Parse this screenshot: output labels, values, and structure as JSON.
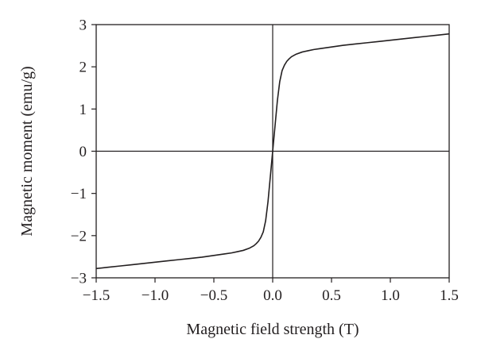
{
  "chart_data": {
    "type": "line",
    "xlabel": "Magnetic field strength (T)",
    "ylabel": "Magnetic moment (emu/g)",
    "xlim": [
      -1.5,
      1.5
    ],
    "ylim": [
      -3,
      3
    ],
    "x_ticks": [
      -1.5,
      -1.0,
      -0.5,
      0.0,
      0.5,
      1.0,
      1.5
    ],
    "x_tick_labels": [
      "−1.5",
      "−1.0",
      "−0.5",
      "0.0",
      "0.5",
      "1.0",
      "1.5"
    ],
    "y_ticks": [
      -3,
      -2,
      -1,
      0,
      1,
      2,
      3
    ],
    "y_tick_labels": [
      "−3",
      "−2",
      "−1",
      "0",
      "1",
      "2",
      "3"
    ],
    "grid": false,
    "zero_lines": true,
    "line_color": "#231f20",
    "series": [
      {
        "x": [
          -1.5,
          -1.4,
          -1.3,
          -1.2,
          -1.1,
          -1.0,
          -0.9,
          -0.8,
          -0.7,
          -0.6,
          -0.5,
          -0.4,
          -0.35,
          -0.3,
          -0.25,
          -0.2,
          -0.18,
          -0.16,
          -0.14,
          -0.12,
          -0.1,
          -0.08,
          -0.06,
          -0.04,
          -0.02,
          0.0,
          0.02,
          0.04,
          0.06,
          0.08,
          0.1,
          0.12,
          0.14,
          0.16,
          0.18,
          0.2,
          0.25,
          0.3,
          0.35,
          0.4,
          0.5,
          0.6,
          0.7,
          0.8,
          0.9,
          1.0,
          1.1,
          1.2,
          1.3,
          1.4,
          1.5
        ],
        "y": [
          -2.78,
          -2.75,
          -2.72,
          -2.69,
          -2.66,
          -2.63,
          -2.6,
          -2.57,
          -2.54,
          -2.51,
          -2.47,
          -2.43,
          -2.41,
          -2.38,
          -2.35,
          -2.3,
          -2.27,
          -2.24,
          -2.19,
          -2.13,
          -2.04,
          -1.91,
          -1.65,
          -1.2,
          -0.6,
          0.0,
          0.6,
          1.2,
          1.65,
          1.91,
          2.04,
          2.13,
          2.19,
          2.24,
          2.27,
          2.3,
          2.35,
          2.38,
          2.41,
          2.43,
          2.47,
          2.51,
          2.54,
          2.57,
          2.6,
          2.63,
          2.66,
          2.69,
          2.72,
          2.75,
          2.78
        ]
      }
    ]
  }
}
